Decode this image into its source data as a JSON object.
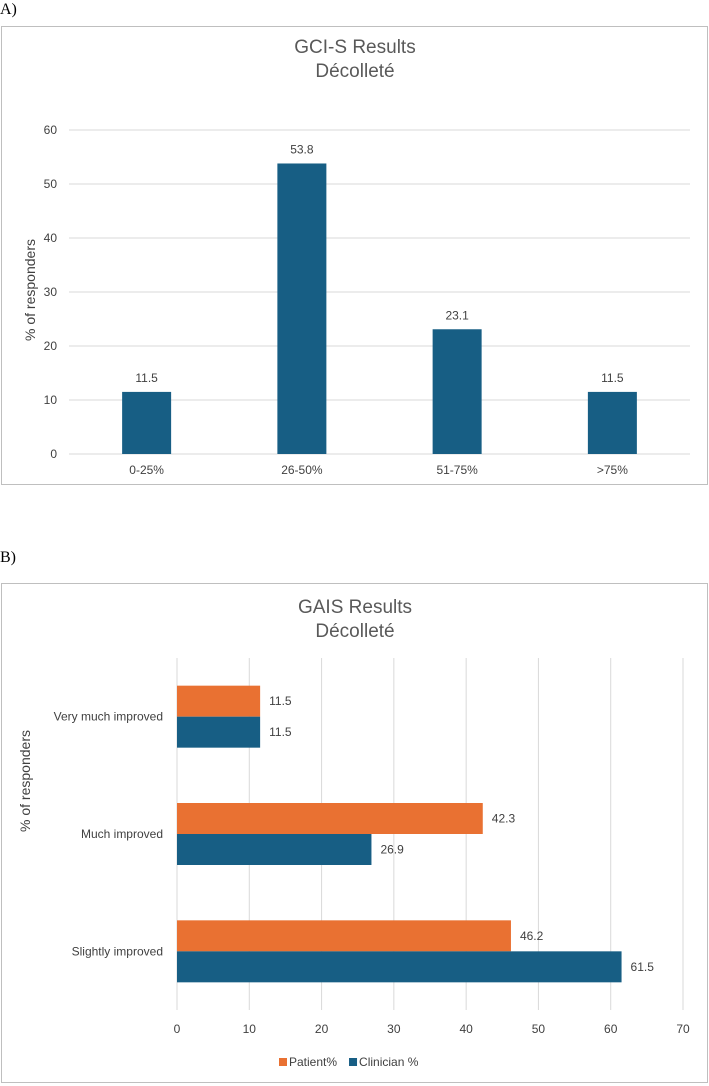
{
  "panels": [
    {
      "label": "A)"
    },
    {
      "label": "B)"
    }
  ],
  "chart_data": [
    {
      "type": "bar",
      "orientation": "vertical",
      "title_lines": [
        "GCI-S  Results",
        "Décolleté"
      ],
      "xlabel": "",
      "ylabel": "% of responders",
      "ylim": [
        0,
        60
      ],
      "yticks": [
        0,
        10,
        20,
        30,
        40,
        50,
        60
      ],
      "categories": [
        "0-25%",
        "26-50%",
        "51-75%",
        ">75%"
      ],
      "values": [
        11.5,
        53.8,
        23.1,
        11.5
      ],
      "data_labels": [
        "11.5",
        "53.8",
        "23.1",
        "11.5"
      ],
      "grid": true,
      "colors": {
        "bar": "#175e84",
        "grid": "#d9d9d9"
      }
    },
    {
      "type": "bar",
      "orientation": "horizontal",
      "title_lines": [
        "GAIS Results",
        "Décolleté"
      ],
      "xlabel": "",
      "ylabel": "% of responders",
      "xlim": [
        0,
        70
      ],
      "xticks": [
        0,
        10,
        20,
        30,
        40,
        50,
        60,
        70
      ],
      "categories": [
        "Very much improved",
        "Much improved",
        "Slightly improved"
      ],
      "series": [
        {
          "name": "Patient%",
          "color": "#e97132",
          "values": [
            11.5,
            42.3,
            46.2
          ],
          "data_labels": [
            "11.5",
            "42.3",
            "46.2"
          ]
        },
        {
          "name": "Clinician %",
          "color": "#175e84",
          "values": [
            11.5,
            26.9,
            61.5
          ],
          "data_labels": [
            "11.5",
            "26.9",
            "61.5"
          ]
        }
      ],
      "legend": "bottom",
      "grid": true,
      "colors": {
        "grid": "#d9d9d9"
      }
    }
  ]
}
